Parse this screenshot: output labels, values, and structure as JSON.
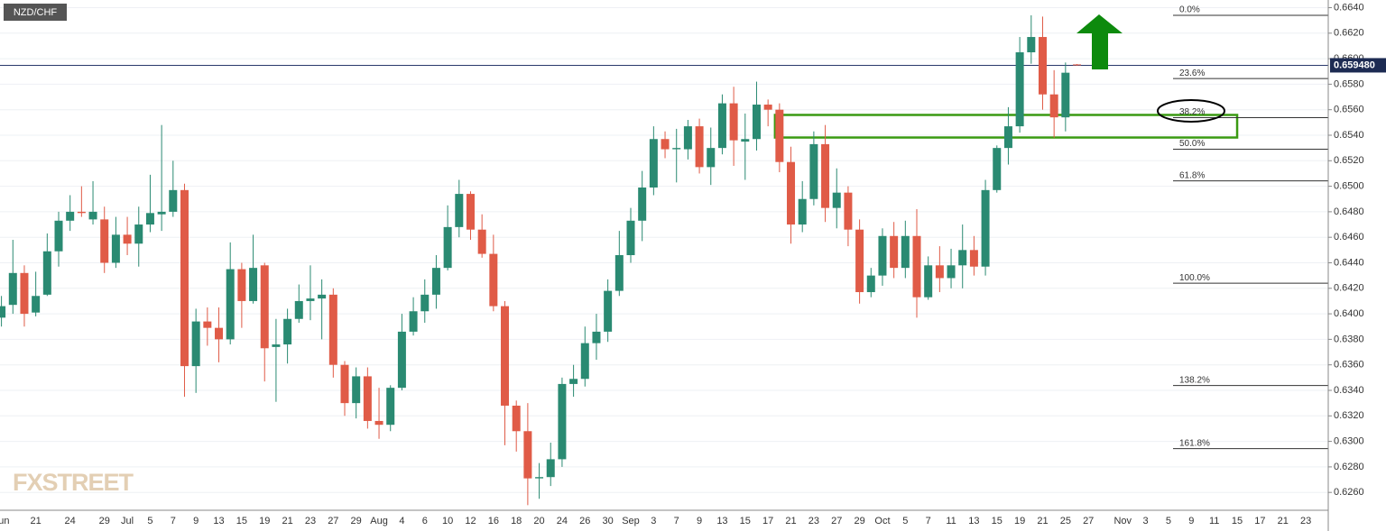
{
  "chart_data": {
    "type": "candlestick",
    "title": "NZD/CHF",
    "watermark": "FXSTREET",
    "up_color": "#2a8a72",
    "down_color": "#e05b47",
    "grid": true,
    "categories": [
      "Jun",
      null,
      null,
      "21",
      null,
      null,
      "24",
      null,
      null,
      "29",
      null,
      "Jul",
      null,
      "5",
      null,
      "7",
      null,
      "9",
      null,
      "13",
      null,
      "15",
      null,
      "19",
      null,
      "21",
      null,
      "23",
      null,
      "27",
      null,
      "29",
      null,
      "Aug",
      null,
      "4",
      null,
      "6",
      null,
      "10",
      null,
      "12",
      null,
      "16",
      null,
      "18",
      null,
      "20",
      null,
      "24",
      null,
      "26",
      null,
      "30",
      null,
      "Sep",
      null,
      "3",
      null,
      "7",
      null,
      "9",
      null,
      "13",
      null,
      "15",
      null,
      "17",
      null,
      "21",
      null,
      "23",
      null,
      "27",
      null,
      "29",
      null,
      "Oct",
      null,
      "5",
      null,
      "7",
      null,
      "11",
      null,
      "13",
      null,
      "15",
      null,
      "19",
      null,
      "21",
      null,
      "25",
      null,
      "27",
      null,
      null,
      "Nov",
      null,
      "3",
      null,
      "5",
      null,
      "9",
      null,
      "11",
      null,
      "15",
      null,
      "17",
      null,
      "21",
      null,
      "23"
    ],
    "open": [
      0.6397,
      0.6407,
      0.6432,
      0.6401,
      0.6415,
      0.6449,
      0.6473,
      0.648,
      0.6474,
      0.6474,
      0.644,
      0.6462,
      0.6455,
      0.647,
      0.6478,
      0.648,
      0.6497,
      0.6359,
      0.6394,
      0.6389,
      0.638,
      0.6435,
      0.641,
      0.6438,
      0.6374,
      0.6376,
      0.6396,
      0.641,
      0.6412,
      0.6415,
      0.636,
      0.633,
      0.6351,
      0.6316,
      0.6313,
      0.6342,
      0.6386,
      0.6402,
      0.6415,
      0.6436,
      0.6468,
      0.6494,
      0.6466,
      0.6447,
      0.6406,
      0.6328,
      0.6308,
      0.6271,
      0.6272,
      0.6286,
      0.6345,
      0.6349,
      0.6377,
      0.6386,
      0.6418,
      0.6446,
      0.6473,
      0.6499,
      0.6537,
      0.6529,
      0.6529,
      0.6547,
      0.6515,
      0.653,
      0.6565,
      0.6535,
      0.6537,
      0.6564,
      0.656,
      0.6519,
      0.647,
      0.649,
      0.6533,
      0.6483,
      0.6495,
      0.6466,
      0.6417,
      0.643,
      0.6461,
      0.6436,
      0.6461,
      0.6413,
      0.6438,
      0.6428,
      0.6438,
      0.645,
      0.6437,
      0.6497,
      0.653,
      0.6547,
      0.6605,
      0.6617,
      0.6572,
      0.6554,
      0.65955,
      null,
      null,
      null,
      null,
      null,
      null,
      null,
      null,
      null,
      null,
      null,
      null,
      null,
      null,
      null,
      null,
      null,
      null,
      null,
      null
    ],
    "high": [
      0.6414,
      0.6458,
      0.6438,
      0.6433,
      0.6463,
      0.648,
      0.6493,
      0.65,
      0.6504,
      0.6484,
      0.6476,
      0.6476,
      0.6484,
      0.6509,
      0.6548,
      0.652,
      0.6502,
      0.6404,
      0.6405,
      0.6405,
      0.6456,
      0.644,
      0.6462,
      0.644,
      0.6396,
      0.6404,
      0.6423,
      0.6438,
      0.6427,
      0.642,
      0.6363,
      0.6358,
      0.6358,
      0.6342,
      0.6344,
      0.64,
      0.6413,
      0.6427,
      0.6446,
      0.6485,
      0.6505,
      0.6496,
      0.6478,
      0.6462,
      0.641,
      0.6332,
      0.633,
      0.6283,
      0.6299,
      0.635,
      0.636,
      0.639,
      0.64,
      0.6427,
      0.6465,
      0.6483,
      0.6512,
      0.6547,
      0.6543,
      0.6545,
      0.6552,
      0.6553,
      0.6546,
      0.6572,
      0.6578,
      0.6557,
      0.6582,
      0.6568,
      0.6565,
      0.6531,
      0.6504,
      0.6543,
      0.6548,
      0.6514,
      0.65,
      0.6474,
      0.6436,
      0.6467,
      0.6472,
      0.6473,
      0.6482,
      0.6445,
      0.6453,
      0.6451,
      0.647,
      0.6461,
      0.6505,
      0.6532,
      0.6562,
      0.6617,
      0.6634,
      0.6633,
      0.6591,
      0.6597,
      0.65958,
      null,
      null,
      null,
      null,
      null,
      null,
      null,
      null,
      null,
      null,
      null,
      null,
      null,
      null,
      null,
      null,
      null,
      null,
      null,
      null
    ],
    "low": [
      0.639,
      0.64,
      0.639,
      0.6398,
      0.6414,
      0.6437,
      0.6465,
      0.6476,
      0.647,
      0.6432,
      0.6436,
      0.6446,
      0.6437,
      0.6464,
      0.6465,
      0.6476,
      0.6335,
      0.6338,
      0.6375,
      0.6362,
      0.6376,
      0.6389,
      0.6408,
      0.6347,
      0.6331,
      0.6361,
      0.6393,
      0.6395,
      0.638,
      0.635,
      0.632,
      0.6318,
      0.631,
      0.6302,
      0.6308,
      0.634,
      0.6383,
      0.6393,
      0.6404,
      0.6434,
      0.646,
      0.6458,
      0.6444,
      0.6402,
      0.6297,
      0.6292,
      0.625,
      0.6255,
      0.6265,
      0.628,
      0.6335,
      0.6343,
      0.6364,
      0.6378,
      0.6414,
      0.644,
      0.6457,
      0.6493,
      0.6522,
      0.6503,
      0.6521,
      0.651,
      0.6501,
      0.6525,
      0.6516,
      0.6505,
      0.6528,
      0.6547,
      0.6511,
      0.6455,
      0.6464,
      0.6485,
      0.6472,
      0.6467,
      0.6453,
      0.6408,
      0.6413,
      0.6422,
      0.6428,
      0.6428,
      0.6397,
      0.6411,
      0.6417,
      0.642,
      0.642,
      0.643,
      0.643,
      0.6495,
      0.6517,
      0.6542,
      0.6596,
      0.656,
      0.6538,
      0.6543,
      0.65945,
      null,
      null,
      null,
      null,
      null,
      null,
      null,
      null,
      null,
      null,
      null,
      null,
      null,
      null,
      null,
      null,
      null,
      null,
      null,
      null
    ],
    "close": [
      0.6406,
      0.6432,
      0.64,
      0.6414,
      0.6449,
      0.6473,
      0.648,
      0.6479,
      0.648,
      0.644,
      0.6462,
      0.6455,
      0.647,
      0.6479,
      0.648,
      0.6497,
      0.6359,
      0.6394,
      0.6389,
      0.638,
      0.6435,
      0.641,
      0.6436,
      0.6373,
      0.6376,
      0.6396,
      0.641,
      0.6412,
      0.6415,
      0.636,
      0.633,
      0.6351,
      0.6316,
      0.6313,
      0.6342,
      0.6386,
      0.6402,
      0.6415,
      0.6436,
      0.6468,
      0.6494,
      0.6466,
      0.6447,
      0.6406,
      0.6328,
      0.6308,
      0.6271,
      0.6272,
      0.6286,
      0.6345,
      0.6349,
      0.6377,
      0.6386,
      0.6418,
      0.6446,
      0.6473,
      0.6499,
      0.6537,
      0.6529,
      0.653,
      0.6547,
      0.6515,
      0.653,
      0.6565,
      0.6536,
      0.6537,
      0.6564,
      0.656,
      0.6519,
      0.647,
      0.649,
      0.6533,
      0.6483,
      0.6495,
      0.6466,
      0.6417,
      0.643,
      0.6461,
      0.6436,
      0.6461,
      0.6413,
      0.6438,
      0.6428,
      0.6438,
      0.645,
      0.6437,
      0.6497,
      0.653,
      0.6547,
      0.6605,
      0.6617,
      0.6572,
      0.6554,
      0.6589,
      0.65948,
      null,
      null,
      null,
      null,
      null,
      null,
      null,
      null,
      null,
      null,
      null,
      null,
      null,
      null,
      null,
      null,
      null,
      null,
      null,
      null
    ],
    "ylim": [
      0.6246,
      0.6646
    ],
    "yticks": [
      {
        "value": 0.626,
        "label": "0.6260"
      },
      {
        "value": 0.628,
        "label": "0.6280"
      },
      {
        "value": 0.63,
        "label": "0.6300"
      },
      {
        "value": 0.632,
        "label": "0.6320"
      },
      {
        "value": 0.634,
        "label": "0.6340"
      },
      {
        "value": 0.636,
        "label": "0.6360"
      },
      {
        "value": 0.638,
        "label": "0.6380"
      },
      {
        "value": 0.64,
        "label": "0.6400"
      },
      {
        "value": 0.642,
        "label": "0.6420"
      },
      {
        "value": 0.644,
        "label": "0.6440"
      },
      {
        "value": 0.646,
        "label": "0.6460"
      },
      {
        "value": 0.648,
        "label": "0.6480"
      },
      {
        "value": 0.65,
        "label": "0.6500"
      },
      {
        "value": 0.652,
        "label": "0.6520"
      },
      {
        "value": 0.654,
        "label": "0.6540"
      },
      {
        "value": 0.656,
        "label": "0.6560"
      },
      {
        "value": 0.658,
        "label": "0.6580"
      },
      {
        "value": 0.66,
        "label": "0.6600"
      },
      {
        "value": 0.662,
        "label": "0.6620"
      },
      {
        "value": 0.664,
        "label": "0.6640"
      }
    ],
    "last_price": {
      "value": 0.65948,
      "label": "0.659480"
    },
    "fib_levels": [
      {
        "name": "0.0%",
        "value": 0.6634
      },
      {
        "name": "23.6%",
        "value": 0.65844
      },
      {
        "name": "38.2%",
        "value": 0.65538
      },
      {
        "name": "50.0%",
        "value": 0.6529
      },
      {
        "name": "61.8%",
        "value": 0.65042
      },
      {
        "name": "100.0%",
        "value": 0.6424
      },
      {
        "name": "138.2%",
        "value": 0.63438
      },
      {
        "name": "161.8%",
        "value": 0.62943
      }
    ],
    "zone": {
      "color": "#3a9a12",
      "values": [
        0.65382,
        0.65559
      ]
    }
  }
}
